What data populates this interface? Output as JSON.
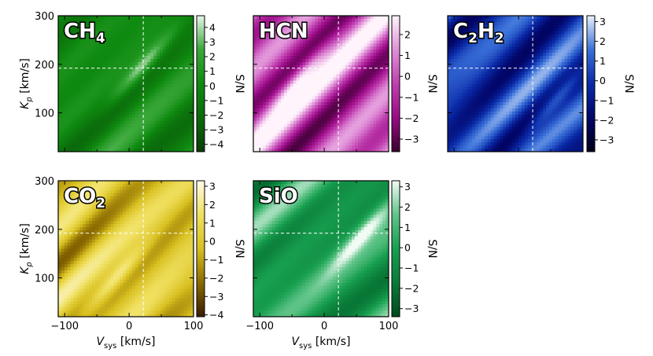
{
  "chart_data": [
    {
      "type": "heatmap",
      "panel": "CH4",
      "title": "CH",
      "title_subscript": "4",
      "colormap": "Greens",
      "cmap_stops": [
        "#0a3d0a",
        "#0b6a0b",
        "#0f8a10",
        "#3aa83a",
        "#e8f5e8"
      ],
      "zlim": [
        -4.5,
        4.8
      ],
      "colorbar_ticks": [
        -4,
        -3,
        -2,
        -1,
        0,
        1,
        2,
        3,
        4
      ],
      "colorbar_label": "S/N",
      "xlabel": "",
      "ylabel": "K_p [km/s]",
      "xlim": [
        -110,
        100
      ],
      "ylim": [
        20,
        300
      ],
      "x_ticks": [],
      "y_ticks": [
        100,
        200,
        300
      ],
      "crosshair": {
        "x": 22,
        "y": 192
      },
      "peak": {
        "x": 20,
        "y": 195,
        "value": 4.5
      },
      "stripe_amplitude": 1.6,
      "seed": 3
    },
    {
      "type": "heatmap",
      "panel": "HCN",
      "title": "HCN",
      "title_subscript": "",
      "colormap": "Magentas",
      "cmap_stops": [
        "#3a0030",
        "#9a0a86",
        "#c040b0",
        "#e090d8",
        "#fff4fc"
      ],
      "zlim": [
        -3.6,
        2.9
      ],
      "colorbar_ticks": [
        -3,
        -2,
        -1,
        0,
        1,
        2
      ],
      "colorbar_label": "S/N",
      "xlabel": "",
      "ylabel": "",
      "xlim": [
        -110,
        100
      ],
      "ylim": [
        20,
        300
      ],
      "x_ticks": [],
      "y_ticks": [],
      "crosshair": {
        "x": 22,
        "y": 192
      },
      "peak": {
        "x": -40,
        "y": 170,
        "value": 2.7
      },
      "stripe_amplitude": 1.9,
      "seed": 7
    },
    {
      "type": "heatmap",
      "panel": "C2H2",
      "title": "C",
      "title_parts": [
        "C",
        "2",
        "H",
        "2"
      ],
      "colormap": "Blues",
      "cmap_stops": [
        "#000018",
        "#02066a",
        "#0a2aa8",
        "#3a70d8",
        "#e8f2ff"
      ],
      "zlim": [
        -3.6,
        3.3
      ],
      "colorbar_ticks": [
        -3,
        -2,
        -1,
        0,
        1,
        2,
        3
      ],
      "colorbar_label": "S/N",
      "xlabel": "",
      "ylabel": "",
      "xlim": [
        -110,
        100
      ],
      "ylim": [
        20,
        300
      ],
      "x_ticks": [],
      "y_ticks": [],
      "crosshair": {
        "x": 22,
        "y": 192
      },
      "peak": {
        "x": 60,
        "y": 130,
        "value": 3.2
      },
      "stripe_amplitude": 1.5,
      "seed": 11
    },
    {
      "type": "heatmap",
      "panel": "CO2",
      "title": "CO",
      "title_subscript": "2",
      "colormap": "Golds",
      "cmap_stops": [
        "#3a1c00",
        "#8a6a00",
        "#d8c020",
        "#f0e060",
        "#fffbe8"
      ],
      "zlim": [
        -4.1,
        3.3
      ],
      "colorbar_ticks": [
        -4,
        -3,
        -2,
        -1,
        0,
        1,
        2,
        3
      ],
      "colorbar_label": "S/N",
      "xlabel": "V_sys [km/s]",
      "ylabel": "K_p [km/s]",
      "xlim": [
        -110,
        100
      ],
      "ylim": [
        20,
        300
      ],
      "x_ticks": [
        -100,
        0,
        100
      ],
      "y_ticks": [
        100,
        200,
        300
      ],
      "crosshair": {
        "x": 22,
        "y": 192
      },
      "peak": {
        "x": -20,
        "y": 100,
        "value": 3.1
      },
      "stripe_amplitude": 1.7,
      "seed": 5
    },
    {
      "type": "heatmap",
      "panel": "SiO",
      "title": "SiO",
      "title_subscript": "",
      "colormap": "Emeralds",
      "cmap_stops": [
        "#004a1c",
        "#0a7a38",
        "#18a050",
        "#60c488",
        "#f0fbf4"
      ],
      "zlim": [
        -3.4,
        3.3
      ],
      "colorbar_ticks": [
        -3,
        -2,
        -1,
        0,
        1,
        2,
        3
      ],
      "colorbar_label": "S/N",
      "xlabel": "V_sys [km/s]",
      "ylabel": "",
      "xlim": [
        -110,
        100
      ],
      "ylim": [
        20,
        300
      ],
      "x_ticks": [
        -100,
        0,
        100
      ],
      "y_ticks": [],
      "crosshair": {
        "x": 22,
        "y": 192
      },
      "peak": {
        "x": 60,
        "y": 190,
        "value": 3.1
      },
      "stripe_amplitude": 1.6,
      "seed": 13
    }
  ]
}
